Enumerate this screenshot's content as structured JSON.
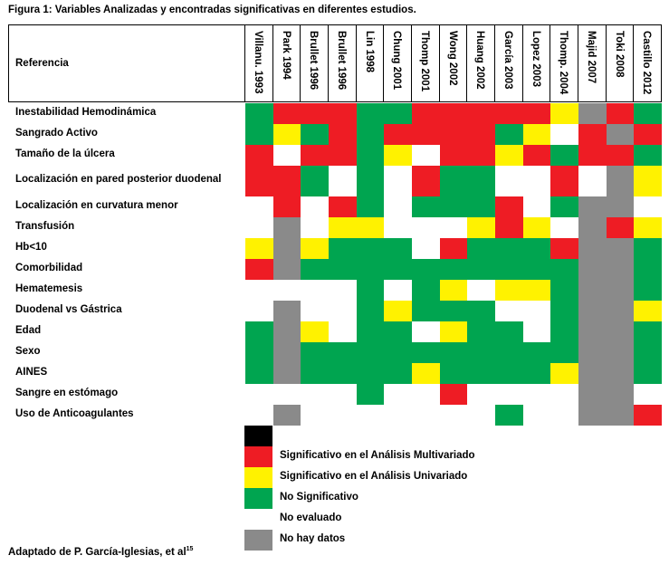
{
  "figure_title": "Figura 1: Variables Analizadas y encontradas significativas en diferentes estudios.",
  "reference_header": "Referencia",
  "columns": [
    "Villanu. 1993",
    "Park 1994",
    "Brullet 1996",
    "Brullet 1996",
    "Lin 1998",
    "Chung 2001",
    "Thomp 2001",
    "Wong 2002",
    "Huang 2002",
    "García 2003",
    "Lopez 2003",
    "Thomp. 2004",
    "Majid 2007",
    "Toki 2008",
    "Castillo 2012"
  ],
  "rows": [
    "Inestabilidad Hemodinámica",
    "Sangrado Activo",
    "Tamaño de la úlcera",
    "Localización en pared posterior duodenal",
    "Localización en curvatura menor",
    "Transfusión",
    "Hb<10",
    "Comorbilidad",
    "Hematemesis",
    "Duodenal vs Gástrica",
    "Edad",
    "Sexo",
    "AINES",
    "Sangre en estómago",
    "Uso de Anticoagulantes"
  ],
  "colors": {
    "R": "#ee1c24",
    "Y": "#fff200",
    "G": "#00a550",
    "W": "#ffffff",
    "N": "#8a8a8a",
    "K": "#000000"
  },
  "matrix": [
    "GRRRGGRRRRRYNRG",
    "GYGRGRRRRGYWRNR",
    "RWRRGYWRRYRGRRG",
    "RRGWGWRGGWWRWNY",
    "WRWRGWGGGRWGNNW",
    "WNWYYWWWYRYWNRY",
    "YNYGGGWRGGGRNNG",
    "RNGGGGGGGGGGNNG",
    "WWWWGWGYWYYGNNG",
    "WNWWGYGGGWWGNNY",
    "GNYWGGWYGGWGNNG",
    "GNGGGGGGGGGGNNG",
    "GNGGGGYGGGGYNNG",
    "WWWWGWWRWWWWNNW",
    "WNWWWWWWWGWWNNR"
  ],
  "legend": [
    {
      "color": "#000000",
      "label": ""
    },
    {
      "color": "#ee1c24",
      "label": "Significativo en el Análisis Multivariado"
    },
    {
      "color": "#fff200",
      "label": "Significativo en el Análisis Univariado"
    },
    {
      "color": "#00a550",
      "label": "No Significativo"
    },
    {
      "color": "#ffffff",
      "label": "No evaluado"
    },
    {
      "color": "#8a8a8a",
      "label": "No hay datos"
    }
  ],
  "source_text": "Adaptado de P. García-Iglesias, et al",
  "source_ref": "15"
}
